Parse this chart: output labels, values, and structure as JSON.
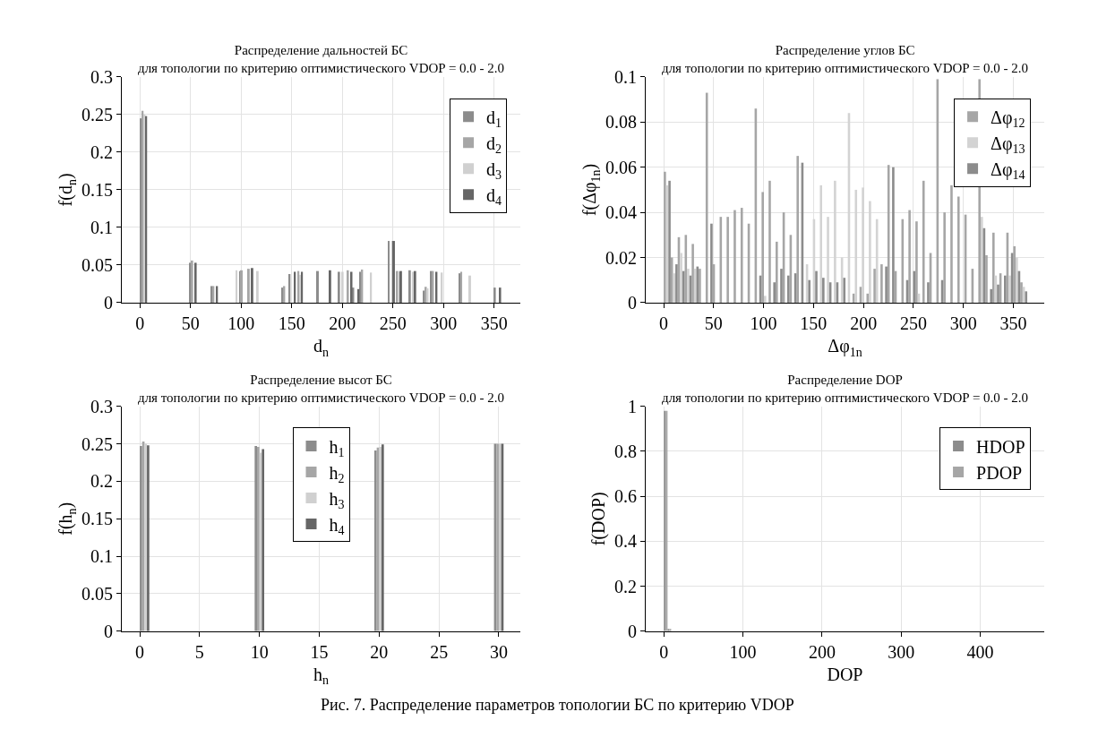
{
  "chart_data": [
    {
      "type": "histogram",
      "title": "Распределение дальностей БС",
      "subtitle": "для топологии по критерию оптимистического VDOP = 0.0 - 2.0",
      "xlabel": "d$_{n}$",
      "ylabel": "f(d$_{n}$)",
      "bins": [
        0,
        7,
        14,
        21,
        28,
        35,
        42,
        49,
        56,
        63,
        70,
        77,
        84,
        91,
        98,
        105,
        112,
        119,
        126,
        133,
        140,
        147,
        154,
        161,
        168,
        175,
        182,
        189,
        196,
        203,
        210,
        217,
        224,
        231,
        238,
        245,
        252,
        259,
        266,
        273,
        280,
        287,
        294,
        301,
        308,
        315,
        322,
        329,
        336,
        343,
        350,
        357
      ],
      "series": [
        {
          "name": "d$_{1}$",
          "color": "#8c8c8c",
          "values": [
            0.245,
            null,
            null,
            null,
            null,
            null,
            null,
            0.053,
            null,
            null,
            0.022,
            null,
            null,
            null,
            0.042,
            null,
            null,
            null,
            null,
            null,
            0.02,
            0.038,
            null,
            null,
            null,
            0.042,
            null,
            null,
            0.041,
            null,
            0.02,
            0.041,
            null,
            null,
            null,
            0.082,
            null,
            null,
            0.043,
            null,
            0.016,
            0.042,
            null,
            null,
            null,
            0.039,
            null,
            null,
            null,
            null,
            0.02
          ]
        },
        {
          "name": "d$_{2}$",
          "color": "#a6a6a6",
          "values": [
            0.255,
            null,
            null,
            null,
            null,
            null,
            null,
            0.056,
            null,
            null,
            0.022,
            null,
            null,
            null,
            0.043,
            0.045,
            null,
            null,
            null,
            null,
            0.022,
            null,
            0.042,
            null,
            null,
            null,
            null,
            null,
            null,
            0.043,
            null,
            0.044,
            null,
            null,
            null,
            null,
            0.042,
            null,
            null,
            null,
            0.021,
            0.042,
            null,
            null,
            null,
            0.041,
            null,
            null,
            null,
            null,
            null
          ]
        },
        {
          "name": "d$_{3}$",
          "color": "#d0d0d0",
          "values": [
            0.25,
            null,
            null,
            null,
            null,
            null,
            null,
            null,
            null,
            null,
            null,
            null,
            null,
            0.043,
            null,
            null,
            0.042,
            null,
            null,
            null,
            null,
            null,
            0.037,
            null,
            null,
            null,
            null,
            null,
            0.041,
            null,
            null,
            null,
            0.04,
            null,
            null,
            0.082,
            0.041,
            null,
            0.041,
            null,
            0.019,
            null,
            0.04,
            null,
            null,
            null,
            0.036,
            null,
            null,
            null,
            null
          ]
        },
        {
          "name": "d$_{4}$",
          "color": "#666666",
          "values": [
            0.248,
            null,
            null,
            null,
            null,
            null,
            null,
            0.053,
            null,
            null,
            0.022,
            null,
            null,
            null,
            null,
            0.046,
            null,
            null,
            null,
            null,
            null,
            0.041,
            0.041,
            null,
            null,
            null,
            0.043,
            null,
            null,
            0.041,
            0.018,
            null,
            null,
            null,
            null,
            0.082,
            0.042,
            null,
            0.042,
            null,
            null,
            0.041,
            null,
            null,
            null,
            null,
            null,
            null,
            null,
            null,
            0.02
          ]
        }
      ],
      "xlim": [
        -18,
        376
      ],
      "ylim": [
        0,
        0.3
      ],
      "xticks": [
        0,
        50,
        100,
        150,
        200,
        250,
        300,
        350
      ],
      "yticks": [
        0,
        0.05,
        0.1,
        0.15,
        0.2,
        0.25,
        0.3
      ],
      "grid": true,
      "legend": "top right"
    },
    {
      "type": "histogram",
      "title": "Распределение углов БС",
      "subtitle": "для топологии по критерию оптимистического VDOP = 0.0 - 2.0",
      "xlabel": "Δφ$_{1n}$",
      "ylabel": "f(Δφ$_{1n}$)",
      "bins": [
        0,
        7,
        14,
        21,
        28,
        35,
        42,
        49,
        56,
        63,
        70,
        77,
        84,
        91,
        98,
        105,
        112,
        119,
        126,
        133,
        140,
        147,
        154,
        161,
        168,
        175,
        182,
        189,
        196,
        203,
        210,
        217,
        224,
        231,
        238,
        245,
        252,
        259,
        266,
        273,
        280,
        287,
        294,
        301,
        308,
        315,
        322,
        329,
        336,
        343,
        350,
        357,
        364
      ],
      "series": [
        {
          "name": "Δφ$_{12}$",
          "color": "#a6a6a6",
          "values": [
            0.058,
            0.02,
            0.029,
            0.03,
            0.026,
            0.015,
            0.093,
            0.017,
            0.038,
            0.038,
            0.041,
            0.042,
            0.035,
            0.086,
            0.049,
            0.054,
            0.027,
            0.04,
            0.03,
            0.065,
            null,
            null,
            null,
            null,
            null,
            null,
            null,
            0.004,
            0.007,
            0.004,
            0.015,
            0.017,
            0.061,
            0.014,
            0.037,
            0.041,
            0.036,
            0.054,
            0.022,
            0.099,
            0.04,
            0.052,
            0.047,
            0.039,
            0.015,
            0.099,
            0.021,
            0.031,
            0.013,
            0.031,
            0.025,
            0.009
          ]
        },
        {
          "name": "Δφ$_{13}$",
          "color": "#d3d3d3",
          "values": [
            0.052,
            0.013,
            0.022,
            0.015,
            0.015,
            null,
            null,
            null,
            null,
            null,
            null,
            null,
            null,
            null,
            0.003,
            null,
            null,
            null,
            null,
            null,
            0.017,
            0.037,
            0.052,
            0.038,
            0.054,
            0.02,
            0.084,
            0.05,
            0.051,
            0.045,
            0.037,
            null,
            null,
            null,
            null,
            null,
            0.004,
            null,
            null,
            null,
            null,
            null,
            null,
            null,
            null,
            0.038,
            null,
            0.012,
            null,
            0.012,
            0.02,
            0.007
          ]
        },
        {
          "name": "Δφ$_{14}$",
          "color": "#8c8c8c",
          "values": [
            0.054,
            0.017,
            0.014,
            0.012,
            0.016,
            null,
            0.035,
            null,
            null,
            null,
            null,
            null,
            null,
            0.012,
            null,
            0.009,
            0.015,
            0.012,
            0.013,
            0.062,
            0.01,
            0.014,
            0.011,
            0.009,
            0.009,
            0.011,
            null,
            null,
            null,
            null,
            null,
            0.016,
            0.06,
            null,
            0.01,
            0.014,
            null,
            0.009,
            null,
            0.01,
            null,
            null,
            null,
            null,
            null,
            0.033,
            0.006,
            0.008,
            0.012,
            0.022,
            0.014,
            0.005
          ]
        }
      ],
      "xlim": [
        -18,
        381
      ],
      "ylim": [
        0,
        0.1
      ],
      "xticks": [
        0,
        50,
        100,
        150,
        200,
        250,
        300,
        350
      ],
      "yticks": [
        0,
        0.02,
        0.04,
        0.06,
        0.08,
        0.1
      ],
      "grid": true,
      "legend": "top right"
    },
    {
      "type": "histogram",
      "title": "Распределение высот БС",
      "subtitle": "для топологии по критерию оптимистического VDOP = 0.0 - 2.0",
      "xlabel": "h$_{n}$",
      "ylabel": "f(h$_{n}$)",
      "bins": [
        0,
        0.8,
        9.6,
        10.4,
        19.6,
        20.4,
        29.6,
        30.4
      ],
      "series": [
        {
          "name": "h$_{1}$",
          "color": "#8c8c8c",
          "values": [
            0.247,
            null,
            0.247,
            null,
            0.241,
            null,
            0.25
          ]
        },
        {
          "name": "h$_{2}$",
          "color": "#a6a6a6",
          "values": [
            0.253,
            null,
            0.246,
            null,
            0.245,
            null,
            0.25
          ]
        },
        {
          "name": "h$_{3}$",
          "color": "#d0d0d0",
          "values": [
            0.25,
            null,
            0.238,
            null,
            0.246,
            null,
            0.25
          ]
        },
        {
          "name": "h$_{4}$",
          "color": "#666666",
          "values": [
            0.248,
            null,
            0.243,
            null,
            0.249,
            null,
            0.25
          ]
        }
      ],
      "xlim": [
        -1.5,
        31.8
      ],
      "ylim": [
        0,
        0.3
      ],
      "xticks": [
        0,
        5,
        10,
        15,
        20,
        25,
        30
      ],
      "yticks": [
        0,
        0.05,
        0.1,
        0.15,
        0.2,
        0.25,
        0.3
      ],
      "grid": true,
      "legend": "top"
    },
    {
      "type": "histogram",
      "title": "Распределение DOP",
      "subtitle": "для топологии по критерию оптимистического VDOP = 0.0 - 2.0",
      "xlabel": "DOP",
      "ylabel": "f(DOP)",
      "bins": [
        0,
        4.6,
        9.2
      ],
      "series": [
        {
          "name": "HDOP",
          "color": "#8c8c8c",
          "values": [
            0.98,
            0.01
          ]
        },
        {
          "name": "PDOP",
          "color": "#a6a6a6",
          "values": [
            0.98,
            0.01
          ]
        }
      ],
      "xlim": [
        -23,
        481
      ],
      "ylim": [
        0,
        1
      ],
      "xticks": [
        0,
        100,
        200,
        300,
        400
      ],
      "yticks": [
        0,
        0.2,
        0.4,
        0.6,
        0.8,
        1
      ],
      "grid": true,
      "legend": "top right",
      "annotations": [
        "Рис. 7. Распределение параметров топологии БС по критерию VDOP"
      ]
    }
  ]
}
